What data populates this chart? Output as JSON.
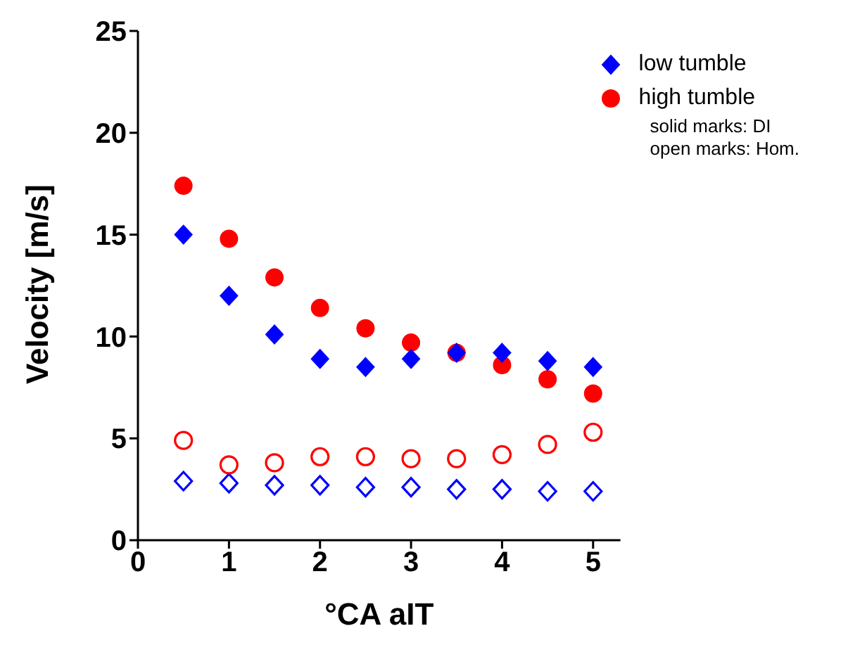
{
  "chart_data": {
    "type": "scatter",
    "xlabel": "°CA aIT",
    "ylabel": "Velocity [m/s]",
    "xlim": [
      0,
      5.3
    ],
    "ylim": [
      0,
      25
    ],
    "xticks": [
      0,
      1,
      2,
      3,
      4,
      5
    ],
    "yticks": [
      0,
      5,
      10,
      15,
      20,
      25
    ],
    "grid": false,
    "legend": "top right",
    "annotations": [
      "solid marks: DI",
      "open marks: Hom."
    ],
    "x": [
      0.5,
      1,
      1.5,
      2,
      2.5,
      3,
      3.5,
      4,
      4.5,
      5
    ],
    "series": [
      {
        "name": "low tumble",
        "color": "#0000ff",
        "marker": "diamond",
        "values": [
          15.0,
          12.0,
          10.1,
          8.9,
          8.5,
          8.9,
          9.2,
          9.2,
          8.8,
          8.5
        ]
      },
      {
        "name": "high tumble",
        "color": "#ff0000",
        "marker": "circle",
        "values": [
          17.4,
          14.8,
          12.9,
          11.4,
          10.4,
          9.7,
          9.2,
          8.6,
          7.9,
          7.2
        ]
      },
      {
        "color": "#ff0000",
        "marker": "circle-open",
        "values": [
          4.9,
          3.7,
          3.8,
          4.1,
          4.1,
          4.0,
          4.0,
          4.2,
          4.7,
          5.3
        ]
      },
      {
        "color": "#0000ff",
        "marker": "diamond-open",
        "values": [
          2.9,
          2.8,
          2.7,
          2.7,
          2.6,
          2.6,
          2.5,
          2.5,
          2.4,
          2.4
        ]
      }
    ]
  }
}
